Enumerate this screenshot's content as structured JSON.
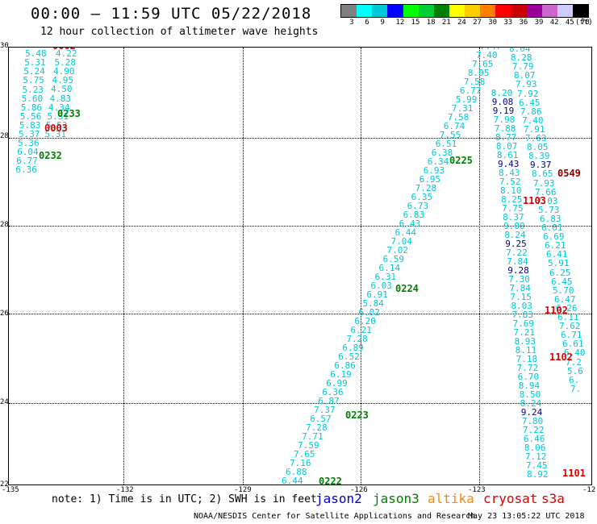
{
  "title": "00:00 – 11:59 UTC 05/22/2018",
  "subtitle": "12 hour collection of altimeter wave heights",
  "colorbar": {
    "colors": [
      "#808080",
      "#00ffff",
      "#00c8d8",
      "#0000ff",
      "#00ff00",
      "#00cc33",
      "#008000",
      "#ffff00",
      "#ffcc00",
      "#ff8000",
      "#ff0000",
      "#cc0000",
      "#990099",
      "#cc66cc",
      "#ccccff",
      "#000000"
    ],
    "ticks": [
      "3",
      "6",
      "9",
      "12",
      "15",
      "18",
      "21",
      "24",
      "27",
      "30",
      "33",
      "36",
      "39",
      "42",
      "45",
      "70"
    ],
    "unit": "(ft)"
  },
  "axes": {
    "lat_labels": [
      "30",
      "28",
      "28",
      "26",
      "24",
      "22",
      "20"
    ],
    "lon_labels": [
      "-135",
      "-132",
      "-129",
      "-126",
      "-123",
      "-12"
    ]
  },
  "tracks": [
    {
      "time": "0002",
      "color": "#dd0000"
    },
    {
      "time": "0233",
      "color": "#008000"
    },
    {
      "time": "0003",
      "color": "#dd0000"
    },
    {
      "time": "0232",
      "color": "#008000"
    },
    {
      "time": "0225",
      "color": "#008000"
    },
    {
      "time": "0549",
      "color": "#880000"
    },
    {
      "time": "1103",
      "color": "#dd0000"
    },
    {
      "time": "0224",
      "color": "#008000"
    },
    {
      "time": "1102",
      "color": "#dd0000"
    },
    {
      "time": "1102",
      "color": "#dd0000"
    },
    {
      "time": "0223",
      "color": "#008000"
    },
    {
      "time": "0222",
      "color": "#008000"
    },
    {
      "time": "1101",
      "color": "#dd0000"
    }
  ],
  "obs_a": [
    "5.31",
    "5.48",
    "5.31",
    "5.24",
    "5.75",
    "5.23",
    "5.60",
    "5.86",
    "5.56",
    "5.83",
    "5.37",
    "5.36",
    "6.04",
    "6.77",
    "6.36"
  ],
  "obs_a2": [
    "4.22",
    "5.28",
    "4.90",
    "4.95",
    "4.50",
    "4.83",
    "4.34",
    "5.31",
    "5.53",
    "5.31"
  ],
  "obs_b": [
    "6.44",
    "6.88",
    "7.16",
    "7.65",
    "7.59",
    "7.71",
    "7.28",
    "6.57",
    "7.37",
    "6.87",
    "6.36",
    "6.99",
    "6.19",
    "6.86",
    "6.52",
    "6.89",
    "7.28",
    "6.21",
    "6.20",
    "6.02",
    "5.84",
    "6.91",
    "6.03",
    "6.31",
    "6.14",
    "6.59",
    "7.02",
    "7.04",
    "6.44",
    "6.43",
    "6.83",
    "6.73",
    "6.35",
    "7.28",
    "6.95",
    "6.93",
    "6.34",
    "6.38",
    "6.51",
    "7.55",
    "6.74",
    "7.58",
    "7.31",
    "5.99",
    "6.77",
    "7.58",
    "8.05",
    "7.65",
    "7.40",
    "7.47",
    "7.90"
  ],
  "obs_c": [
    "8.92",
    "7.45",
    "7.12",
    "8.06",
    "6.46",
    "7.22",
    "7.80",
    "9.24",
    "8.24",
    "8.50",
    "8.94",
    "6.70",
    "7.72",
    "7.18",
    "8.11",
    "8.93",
    "7.21",
    "7.69",
    "7.83",
    "8.03",
    "7.15",
    "7.84",
    "7.30",
    "9.28",
    "7.84",
    "7.22",
    "9.25",
    "8.24",
    "9.00",
    "8.37",
    "7.75",
    "8.25",
    "8.10",
    "7.52",
    "8.43",
    "9.43",
    "8.61",
    "8.07",
    "8.77",
    "7.88",
    "7.98",
    "9.19",
    "9.08",
    "8.20"
  ],
  "obs_d": [
    "8.04",
    "8.28",
    "7.79",
    "8.07",
    "7.93",
    "7.92",
    "6.45",
    "7.86",
    "7.40",
    "7.91",
    "7.63",
    "8.05",
    "8.39",
    "9.37",
    "8.65",
    "7.93",
    "7.66",
    "7.03",
    "5.73",
    "6.83",
    "6.01",
    "6.69",
    "6.21",
    "6.41",
    "5.91",
    "6.25",
    "6.45",
    "5.70",
    "6.47",
    "6.26",
    "6.11",
    "7.62",
    "6.71",
    "6.61",
    "6.40",
    "7.2",
    "5.6",
    "6.",
    "7."
  ],
  "note": "note: 1) Time is in UTC; 2) SWH is in feet",
  "legend": [
    {
      "name": "jason2",
      "color": "#0000dd"
    },
    {
      "name": "jason3",
      "color": "#008000"
    },
    {
      "name": "altika",
      "color": "#ff8800"
    },
    {
      "name": "cryosat",
      "color": "#dd0000"
    },
    {
      "name": "s3a",
      "color": "#dd0000"
    }
  ],
  "credit": "NOAA/NESDIS Center for Satellite Applications and Research",
  "stamp": "May 23 13:05:22 UTC 2018"
}
